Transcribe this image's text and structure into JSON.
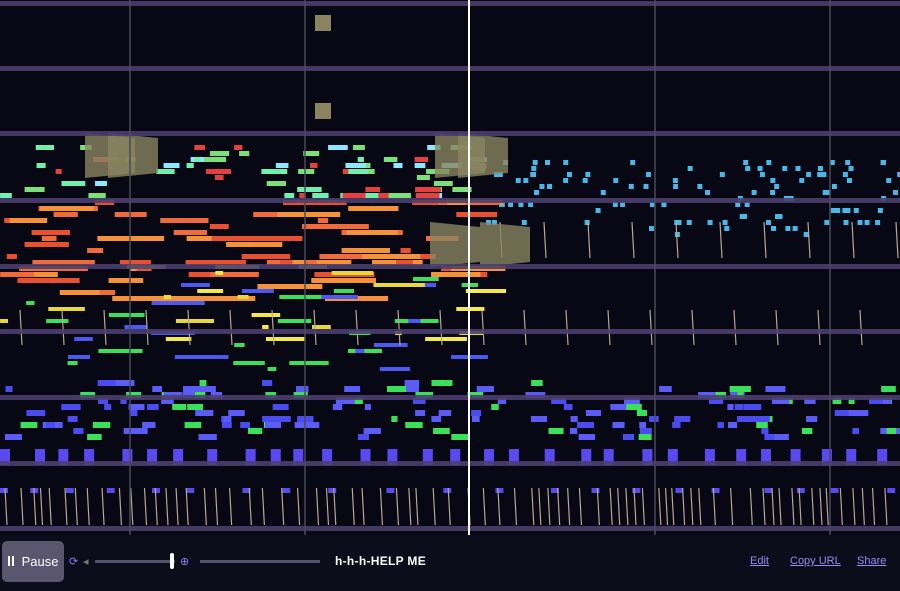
{
  "controls": {
    "pause": "Pause",
    "song_title": "h-h-h-HELP ME"
  },
  "links": {
    "edit": "Edit",
    "copy_url": "Copy URL",
    "share": "Share"
  }
}
